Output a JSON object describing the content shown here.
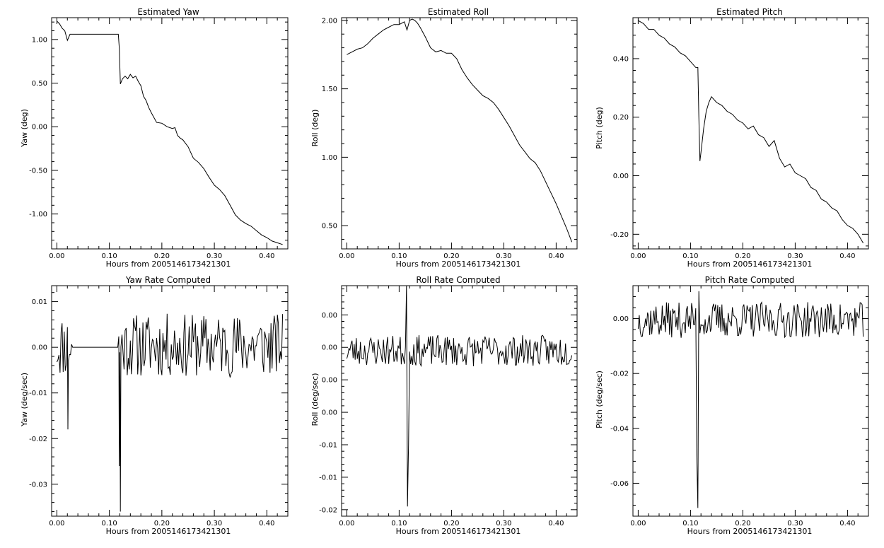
{
  "chart_data": [
    {
      "type": "line",
      "title": "Estimated Yaw",
      "xlabel": "Hours from 2005146173421301",
      "ylabel": "Yaw (deg)",
      "xlim": [
        -0.01,
        0.44
      ],
      "ylim": [
        -1.4,
        1.25
      ],
      "xticks": [
        0.0,
        0.1,
        0.2,
        0.3,
        0.4
      ],
      "xticklabels": [
        "0.00",
        "0.10",
        "0.20",
        "0.30",
        "0.40"
      ],
      "yticks": [
        -1.0,
        -0.5,
        0.0,
        0.5,
        1.0
      ],
      "yticklabels": [
        "-1.00",
        "-0.50",
        "0.00",
        "0.50",
        "1.00"
      ],
      "series": [
        {
          "x": [
            0.0,
            0.005,
            0.01,
            0.015,
            0.02,
            0.025,
            0.03,
            0.06,
            0.09,
            0.117,
            0.119,
            0.121,
            0.125,
            0.13,
            0.135,
            0.14,
            0.145,
            0.15,
            0.155,
            0.16,
            0.165,
            0.17,
            0.175,
            0.18,
            0.19,
            0.2,
            0.21,
            0.22,
            0.225,
            0.23,
            0.235,
            0.24,
            0.25,
            0.26,
            0.27,
            0.28,
            0.29,
            0.3,
            0.31,
            0.32,
            0.33,
            0.34,
            0.35,
            0.36,
            0.37,
            0.38,
            0.39,
            0.4,
            0.41,
            0.42,
            0.43
          ],
          "y": [
            1.21,
            1.18,
            1.13,
            1.1,
            0.99,
            1.06,
            1.06,
            1.06,
            1.06,
            1.06,
            0.9,
            0.49,
            0.55,
            0.58,
            0.55,
            0.6,
            0.56,
            0.58,
            0.52,
            0.47,
            0.35,
            0.3,
            0.22,
            0.16,
            0.05,
            0.04,
            0.0,
            -0.02,
            -0.01,
            -0.1,
            -0.13,
            -0.15,
            -0.23,
            -0.36,
            -0.41,
            -0.48,
            -0.58,
            -0.67,
            -0.72,
            -0.79,
            -0.9,
            -1.01,
            -1.07,
            -1.11,
            -1.14,
            -1.19,
            -1.24,
            -1.27,
            -1.31,
            -1.33,
            -1.35
          ]
        }
      ]
    },
    {
      "type": "line",
      "title": "Estimated Roll",
      "xlabel": "Hours from 2005146173421301",
      "ylabel": "Roll (deg)",
      "xlim": [
        -0.01,
        0.44
      ],
      "ylim": [
        0.33,
        2.02
      ],
      "xticks": [
        0.0,
        0.1,
        0.2,
        0.3,
        0.4
      ],
      "xticklabels": [
        "0.00",
        "0.10",
        "0.20",
        "0.30",
        "0.40"
      ],
      "yticks": [
        0.5,
        1.0,
        1.5,
        2.0
      ],
      "yticklabels": [
        "0.50",
        "1.00",
        "1.50",
        "2.00"
      ],
      "series": [
        {
          "x": [
            0.0,
            0.01,
            0.02,
            0.03,
            0.04,
            0.05,
            0.06,
            0.07,
            0.08,
            0.09,
            0.1,
            0.11,
            0.115,
            0.12,
            0.125,
            0.13,
            0.135,
            0.14,
            0.15,
            0.16,
            0.17,
            0.18,
            0.19,
            0.2,
            0.21,
            0.22,
            0.23,
            0.24,
            0.25,
            0.26,
            0.27,
            0.28,
            0.29,
            0.3,
            0.31,
            0.32,
            0.33,
            0.34,
            0.35,
            0.36,
            0.37,
            0.38,
            0.39,
            0.4,
            0.41,
            0.42,
            0.43
          ],
          "y": [
            1.75,
            1.77,
            1.79,
            1.8,
            1.83,
            1.87,
            1.9,
            1.93,
            1.95,
            1.97,
            1.97,
            1.99,
            1.93,
            2.0,
            2.01,
            2.0,
            1.98,
            1.95,
            1.88,
            1.8,
            1.77,
            1.78,
            1.76,
            1.76,
            1.72,
            1.64,
            1.58,
            1.53,
            1.49,
            1.45,
            1.43,
            1.4,
            1.35,
            1.29,
            1.23,
            1.16,
            1.09,
            1.04,
            0.99,
            0.96,
            0.9,
            0.82,
            0.74,
            0.66,
            0.57,
            0.48,
            0.38
          ]
        }
      ]
    },
    {
      "type": "line",
      "title": "Estimated Pitch",
      "xlabel": "Hours from 2005146173421301",
      "ylabel": "Pitch (deg)",
      "xlim": [
        -0.01,
        0.44
      ],
      "ylim": [
        -0.25,
        0.54
      ],
      "xticks": [
        0.0,
        0.1,
        0.2,
        0.3,
        0.4
      ],
      "xticklabels": [
        "0.00",
        "0.10",
        "0.20",
        "0.30",
        "0.40"
      ],
      "yticks": [
        -0.2,
        0.0,
        0.2,
        0.4
      ],
      "yticklabels": [
        "-0.20",
        "0.00",
        "0.20",
        "0.40"
      ],
      "series": [
        {
          "x": [
            0.0,
            0.01,
            0.02,
            0.03,
            0.04,
            0.05,
            0.06,
            0.07,
            0.08,
            0.09,
            0.1,
            0.11,
            0.114,
            0.116,
            0.118,
            0.12,
            0.125,
            0.13,
            0.135,
            0.14,
            0.15,
            0.16,
            0.17,
            0.18,
            0.19,
            0.2,
            0.21,
            0.22,
            0.23,
            0.24,
            0.25,
            0.26,
            0.27,
            0.28,
            0.29,
            0.3,
            0.31,
            0.32,
            0.33,
            0.34,
            0.35,
            0.36,
            0.37,
            0.38,
            0.39,
            0.4,
            0.41,
            0.42,
            0.43
          ],
          "y": [
            0.53,
            0.52,
            0.5,
            0.5,
            0.48,
            0.47,
            0.45,
            0.44,
            0.42,
            0.41,
            0.39,
            0.37,
            0.37,
            0.2,
            0.05,
            0.08,
            0.16,
            0.22,
            0.25,
            0.27,
            0.25,
            0.24,
            0.22,
            0.21,
            0.19,
            0.18,
            0.16,
            0.17,
            0.14,
            0.13,
            0.1,
            0.12,
            0.06,
            0.03,
            0.04,
            0.01,
            0.0,
            -0.01,
            -0.04,
            -0.05,
            -0.08,
            -0.09,
            -0.11,
            -0.12,
            -0.15,
            -0.17,
            -0.18,
            -0.2,
            -0.23
          ]
        }
      ]
    },
    {
      "type": "line",
      "title": "Yaw Rate Computed",
      "xlabel": "Hours from 2005146173421301",
      "ylabel": "Yaw (deg/sec)",
      "xlim": [
        -0.01,
        0.44
      ],
      "ylim": [
        -0.037,
        0.0135
      ],
      "xticks": [
        0.0,
        0.1,
        0.2,
        0.3,
        0.4
      ],
      "xticklabels": [
        "0.00",
        "0.10",
        "0.20",
        "0.30",
        "0.40"
      ],
      "yticks": [
        0.01,
        0.0,
        -0.01,
        -0.02,
        -0.03
      ],
      "yticklabels": [
        "0.01",
        "0.00",
        "-0.01",
        "-0.02",
        "-0.03"
      ],
      "noise": {
        "seed": 11,
        "step": 0.002,
        "normal": [
          0.0004,
          0.007
        ],
        "quiet": [
          [
            0.03,
            0.117
          ]
        ],
        "spikes": [
          [
            0.119,
            -0.026
          ],
          [
            0.121,
            -0.036
          ],
          [
            0.021,
            -0.018
          ]
        ]
      },
      "series": [
        {
          "x": [
            0.0,
            0.004,
            0.008,
            0.012,
            0.016,
            0.02,
            0.024,
            0.028,
            0.03,
            0.117,
            0.119,
            0.121,
            0.123,
            0.126,
            0.13,
            0.133,
            0.136,
            0.14,
            0.15,
            0.16,
            0.17,
            0.18,
            0.19,
            0.2,
            0.21,
            0.22,
            0.23,
            0.24,
            0.25,
            0.26,
            0.27,
            0.28,
            0.29,
            0.3,
            0.31,
            0.32,
            0.33,
            0.34,
            0.35,
            0.36,
            0.37,
            0.38,
            0.39,
            0.4,
            0.41,
            0.42,
            0.43
          ],
          "y": [
            0.007,
            -0.011,
            0.005,
            -0.01,
            0.009,
            -0.018,
            0.013,
            -0.001,
            0.0,
            0.0,
            -0.026,
            -0.036,
            0.011,
            -0.009,
            0.013,
            -0.004,
            0.009,
            -0.013,
            0.008,
            -0.007,
            0.004,
            -0.006,
            0.003,
            -0.004,
            0.003,
            -0.004,
            0.003,
            -0.012,
            0.002,
            -0.008,
            0.002,
            -0.004,
            0.001,
            -0.007,
            0.002,
            -0.007,
            0.001,
            -0.004,
            0.002,
            -0.006,
            0.002,
            -0.002,
            0.002,
            -0.003,
            0.003,
            -0.004,
            0.0
          ]
        }
      ]
    },
    {
      "type": "line",
      "title": "Roll Rate Computed",
      "xlabel": "Hours from 2005146173421301",
      "ylabel": "Roll (deg/sec)",
      "xlim": [
        -0.01,
        0.44
      ],
      "ylim": [
        -0.021,
        0.0145
      ],
      "xticks": [
        0.0,
        0.1,
        0.2,
        0.3,
        0.4
      ],
      "xticklabels": [
        "0.00",
        "0.10",
        "0.20",
        "0.30",
        "0.40"
      ],
      "yticks": [
        0.01,
        0.005,
        0.0,
        -0.005,
        -0.01,
        -0.015,
        -0.02
      ],
      "yticklabels": [
        "0.00",
        "0.00",
        "0.00",
        "0.00",
        "-0.01",
        "-0.01",
        "-0.02"
      ],
      "noise": {
        "seed": 23,
        "step": 0.002,
        "normal": [
          0.0045,
          0.0024
        ],
        "quiet": [],
        "spikes": [
          [
            0.114,
            0.0145
          ],
          [
            0.116,
            -0.0195
          ],
          [
            0.118,
            -0.01
          ]
        ]
      },
      "series": [
        {
          "x": [
            0.0,
            0.01,
            0.02,
            0.03,
            0.04,
            0.05,
            0.06,
            0.07,
            0.08,
            0.09,
            0.1,
            0.11,
            0.114,
            0.116,
            0.118,
            0.12,
            0.13,
            0.14,
            0.15,
            0.16,
            0.17,
            0.18,
            0.19,
            0.2,
            0.21,
            0.22,
            0.23,
            0.24,
            0.25,
            0.26,
            0.27,
            0.28,
            0.29,
            0.3,
            0.31,
            0.32,
            0.33,
            0.34,
            0.35,
            0.36,
            0.37,
            0.38,
            0.39,
            0.4,
            0.41,
            0.42,
            0.43
          ],
          "y": [
            0.007,
            0.009,
            0.002,
            0.006,
            0.003,
            0.006,
            0.002,
            0.005,
            0.003,
            0.006,
            0.002,
            0.005,
            0.0145,
            -0.0195,
            -0.01,
            0.005,
            0.002,
            0.006,
            0.003,
            0.002,
            0.005,
            0.001,
            0.004,
            0.002,
            0.001,
            0.005,
            0.002,
            0.003,
            0.001,
            0.004,
            0.002,
            0.003,
            0.001,
            0.004,
            0.002,
            0.002,
            0.001,
            0.003,
            0.002,
            0.001,
            0.003,
            0.002,
            0.001,
            0.004,
            0.002,
            0.003,
            0.002
          ]
        }
      ]
    },
    {
      "type": "line",
      "title": "Pitch Rate Computed",
      "xlabel": "Hours from 2005146173421301",
      "ylabel": "Pitch (deg/sec)",
      "xlim": [
        -0.01,
        0.44
      ],
      "ylim": [
        -0.072,
        0.012
      ],
      "xticks": [
        0.0,
        0.1,
        0.2,
        0.3,
        0.4
      ],
      "xticklabels": [
        "0.00",
        "0.10",
        "0.20",
        "0.30",
        "0.40"
      ],
      "yticks": [
        0.0,
        -0.02,
        -0.04,
        -0.06
      ],
      "yticklabels": [
        "0.00",
        "-0.02",
        "-0.04",
        "-0.06"
      ],
      "noise": {
        "seed": 37,
        "step": 0.002,
        "normal": [
          -0.0005,
          0.0065
        ],
        "quiet": [],
        "spikes": [
          [
            0.112,
            -0.05
          ],
          [
            0.114,
            -0.069
          ],
          [
            0.116,
            0.01
          ]
        ]
      },
      "series": [
        {
          "x": [
            0.0,
            0.01,
            0.02,
            0.03,
            0.04,
            0.05,
            0.06,
            0.07,
            0.08,
            0.09,
            0.1,
            0.11,
            0.112,
            0.114,
            0.116,
            0.12,
            0.13,
            0.14,
            0.15,
            0.16,
            0.17,
            0.18,
            0.19,
            0.2,
            0.21,
            0.22,
            0.23,
            0.24,
            0.25,
            0.26,
            0.27,
            0.28,
            0.29,
            0.3,
            0.31,
            0.32,
            0.33,
            0.34,
            0.35,
            0.36,
            0.37,
            0.38,
            0.39,
            0.4,
            0.41,
            0.42,
            0.43
          ],
          "y": [
            -0.002,
            0.003,
            -0.003,
            0.004,
            0.0,
            -0.004,
            0.006,
            -0.002,
            0.003,
            -0.005,
            0.005,
            -0.003,
            -0.05,
            -0.069,
            0.01,
            0.002,
            -0.003,
            0.004,
            0.001,
            -0.004,
            0.005,
            -0.003,
            0.004,
            0.0,
            -0.006,
            0.004,
            -0.002,
            0.007,
            -0.01,
            0.008,
            -0.012,
            0.006,
            -0.005,
            0.009,
            -0.004,
            0.005,
            -0.008,
            0.004,
            -0.003,
            0.006,
            -0.005,
            0.004,
            -0.004,
            0.003,
            -0.004,
            0.004,
            -0.003
          ]
        }
      ]
    }
  ]
}
